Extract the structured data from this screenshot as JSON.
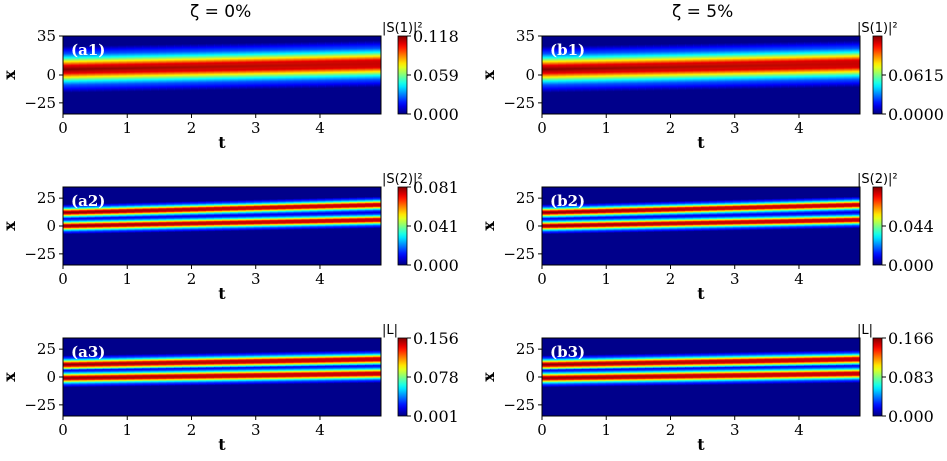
{
  "columns": [
    {
      "title": "ζ = 0%"
    },
    {
      "title": "ζ = 5%"
    }
  ],
  "chart_data": [
    {
      "type": "heatmap",
      "panel": "(a1)",
      "xlabel": "t",
      "ylabel": "x",
      "xlim": [
        0,
        4.95
      ],
      "ylim": [
        -35,
        35
      ],
      "xticks": [
        "0",
        "1",
        "2",
        "3",
        "4"
      ],
      "yticks": [
        "35",
        "0",
        "−25"
      ],
      "colorbar": {
        "label": "|S(1)|²",
        "ticks": [
          "0.118",
          "0.059",
          "0.000"
        ]
      },
      "peak_amplitude": 0.118,
      "bands": [
        {
          "x_start": 5,
          "x_end": 10,
          "sigma": 7
        }
      ]
    },
    {
      "type": "heatmap",
      "panel": "(b1)",
      "xlabel": "t",
      "ylabel": "x",
      "xlim": [
        0,
        4.95
      ],
      "ylim": [
        -35,
        35
      ],
      "xticks": [
        "0",
        "1",
        "2",
        "3",
        "4"
      ],
      "yticks": [
        "35",
        "0",
        "−25"
      ],
      "colorbar": {
        "label": "|S(1)|²",
        "ticks": [
          "0.0615",
          "0.0000"
        ]
      },
      "peak_amplitude": 0.123,
      "bands": [
        {
          "x_start": 5,
          "x_end": 10,
          "sigma": 7
        }
      ]
    },
    {
      "type": "heatmap",
      "panel": "(a2)",
      "xlabel": "t",
      "ylabel": "x",
      "xlim": [
        0,
        4.95
      ],
      "ylim": [
        -35,
        35
      ],
      "xticks": [
        "0",
        "1",
        "2",
        "3",
        "4"
      ],
      "yticks": [
        "25",
        "0",
        "−25"
      ],
      "colorbar": {
        "label": "|S(2)|²",
        "ticks": [
          "0.081",
          "0.041",
          "0.000"
        ]
      },
      "peak_amplitude": 0.081,
      "bands": [
        {
          "x_start": 12,
          "x_end": 19,
          "sigma": 2.5
        },
        {
          "x_start": 0,
          "x_end": 5.5,
          "sigma": 2.5
        }
      ]
    },
    {
      "type": "heatmap",
      "panel": "(b2)",
      "xlabel": "t",
      "ylabel": "x",
      "xlim": [
        0,
        4.95
      ],
      "ylim": [
        -35,
        35
      ],
      "xticks": [
        "0",
        "1",
        "2",
        "3",
        "4"
      ],
      "yticks": [
        "25",
        "0",
        "−25"
      ],
      "colorbar": {
        "label": "|S(2)|²",
        "ticks": [
          "0.044",
          "0.000"
        ]
      },
      "peak_amplitude": 0.088,
      "bands": [
        {
          "x_start": 12,
          "x_end": 19,
          "sigma": 2.5
        },
        {
          "x_start": 0,
          "x_end": 5.5,
          "sigma": 2.5
        }
      ]
    },
    {
      "type": "heatmap",
      "panel": "(a3)",
      "xlabel": "t",
      "ylabel": "x",
      "xlim": [
        0,
        4.95
      ],
      "ylim": [
        -35,
        35
      ],
      "xticks": [
        "0",
        "1",
        "2",
        "3",
        "4"
      ],
      "yticks": [
        "25",
        "0",
        "−25"
      ],
      "colorbar": {
        "label": "|L|",
        "ticks": [
          "0.156",
          "0.078",
          "0.001"
        ]
      },
      "peak_amplitude": 0.156,
      "bands": [
        {
          "x_start": 11,
          "x_end": 16,
          "sigma": 2.8
        },
        {
          "x_start": -1,
          "x_end": 3,
          "sigma": 2.8
        }
      ]
    },
    {
      "type": "heatmap",
      "panel": "(b3)",
      "xlabel": "t",
      "ylabel": "x",
      "xlim": [
        0,
        4.95
      ],
      "ylim": [
        -35,
        35
      ],
      "xticks": [
        "0",
        "1",
        "2",
        "3",
        "4"
      ],
      "yticks": [
        "25",
        "0",
        "−25"
      ],
      "colorbar": {
        "label": "|L|",
        "ticks": [
          "0.166",
          "0.083",
          "0.000"
        ]
      },
      "peak_amplitude": 0.166,
      "bands": [
        {
          "x_start": 11,
          "x_end": 16,
          "sigma": 2.8
        },
        {
          "x_start": -1,
          "x_end": 3,
          "sigma": 2.8
        }
      ]
    }
  ]
}
